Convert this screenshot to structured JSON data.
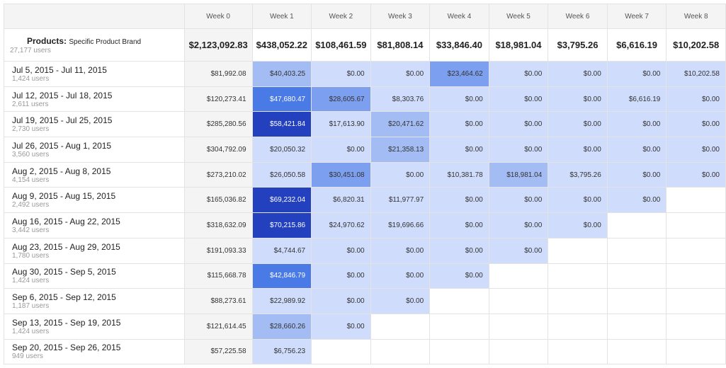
{
  "columns": [
    "Week 0",
    "Week 1",
    "Week 2",
    "Week 3",
    "Week 4",
    "Week 5",
    "Week 6",
    "Week 7",
    "Week 8"
  ],
  "totals": {
    "label_bold": "Products:",
    "label_rest": "Specific Product Brand",
    "users": "27,177 users",
    "values": [
      "$2,123,092.83",
      "$438,052.22",
      "$108,461.59",
      "$81,808.14",
      "$33,846.40",
      "$18,981.04",
      "$3,795.26",
      "$6,616.19",
      "$10,202.58"
    ]
  },
  "rows": [
    {
      "range": "Jul 5, 2015 - Jul 11, 2015",
      "users": "1,424 users",
      "values": [
        "$81,992.08",
        "$40,403.25",
        "$0.00",
        "$0.00",
        "$23,464.62",
        "$0.00",
        "$0.00",
        "$0.00",
        "$10,202.58"
      ]
    },
    {
      "range": "Jul 12, 2015 - Jul 18, 2015",
      "users": "2,611 users",
      "values": [
        "$120,273.41",
        "$47,680.47",
        "$28,605.67",
        "$8,303.76",
        "$0.00",
        "$0.00",
        "$0.00",
        "$6,616.19",
        "$0.00"
      ]
    },
    {
      "range": "Jul 19, 2015 - Jul 25, 2015",
      "users": "2,730 users",
      "values": [
        "$285,280.56",
        "$58,421.84",
        "$17,613.90",
        "$20,471.62",
        "$0.00",
        "$0.00",
        "$0.00",
        "$0.00",
        "$0.00"
      ]
    },
    {
      "range": "Jul 26, 2015 - Aug 1, 2015",
      "users": "3,560 users",
      "values": [
        "$304,792.09",
        "$20,050.32",
        "$0.00",
        "$21,358.13",
        "$0.00",
        "$0.00",
        "$0.00",
        "$0.00",
        "$0.00"
      ]
    },
    {
      "range": "Aug 2, 2015 - Aug 8, 2015",
      "users": "4,154 users",
      "values": [
        "$273,210.02",
        "$26,050.58",
        "$30,451.08",
        "$0.00",
        "$10,381.78",
        "$18,981.04",
        "$3,795.26",
        "$0.00",
        "$0.00"
      ]
    },
    {
      "range": "Aug 9, 2015 - Aug 15, 2015",
      "users": "2,492 users",
      "values": [
        "$165,036.82",
        "$69,232.04",
        "$6,820.31",
        "$11,977.97",
        "$0.00",
        "$0.00",
        "$0.00",
        "$0.00"
      ]
    },
    {
      "range": "Aug 16, 2015 - Aug 22, 2015",
      "users": "3,442 users",
      "values": [
        "$318,632.09",
        "$70,215.86",
        "$24,970.62",
        "$19,696.66",
        "$0.00",
        "$0.00",
        "$0.00"
      ]
    },
    {
      "range": "Aug 23, 2015 - Aug 29, 2015",
      "users": "1,780 users",
      "values": [
        "$191,093.33",
        "$4,744.67",
        "$0.00",
        "$0.00",
        "$0.00",
        "$0.00"
      ]
    },
    {
      "range": "Aug 30, 2015 - Sep 5, 2015",
      "users": "1,424 users",
      "values": [
        "$115,668.78",
        "$42,846.79",
        "$0.00",
        "$0.00",
        "$0.00"
      ]
    },
    {
      "range": "Sep 6, 2015 - Sep 12, 2015",
      "users": "1,187 users",
      "values": [
        "$88,273.61",
        "$22,989.92",
        "$0.00",
        "$0.00"
      ]
    },
    {
      "range": "Sep 13, 2015 - Sep 19, 2015",
      "users": "1,424 users",
      "values": [
        "$121,614.45",
        "$28,660.26",
        "$0.00"
      ]
    },
    {
      "range": "Sep 20, 2015 - Sep 26, 2015",
      "users": "949 users",
      "values": [
        "$57,225.58",
        "$6,756.23"
      ]
    }
  ],
  "shade_levels": [
    [
      "",
      "s2",
      "s1",
      "s1",
      "s3",
      "s1",
      "s1",
      "s1",
      "s1"
    ],
    [
      "",
      "s4",
      "s3",
      "s1",
      "s1",
      "s1",
      "s1",
      "s1",
      "s1"
    ],
    [
      "",
      "s5",
      "s1",
      "s2",
      "s1",
      "s1",
      "s1",
      "s1",
      "s1"
    ],
    [
      "",
      "s1",
      "s1",
      "s2",
      "s1",
      "s1",
      "s1",
      "s1",
      "s1"
    ],
    [
      "",
      "s1",
      "s3",
      "s1",
      "s1",
      "s2",
      "s1",
      "s1",
      "s1"
    ],
    [
      "",
      "s5",
      "s1",
      "s1",
      "s1",
      "s1",
      "s1",
      "s1"
    ],
    [
      "",
      "s5",
      "s1",
      "s1",
      "s1",
      "s1",
      "s1"
    ],
    [
      "",
      "s1",
      "s1",
      "s1",
      "s1",
      "s1"
    ],
    [
      "",
      "s4",
      "s1",
      "s1",
      "s1"
    ],
    [
      "",
      "s1",
      "s1",
      "s1"
    ],
    [
      "",
      "s2",
      "s1"
    ],
    [
      "",
      "s1"
    ]
  ]
}
